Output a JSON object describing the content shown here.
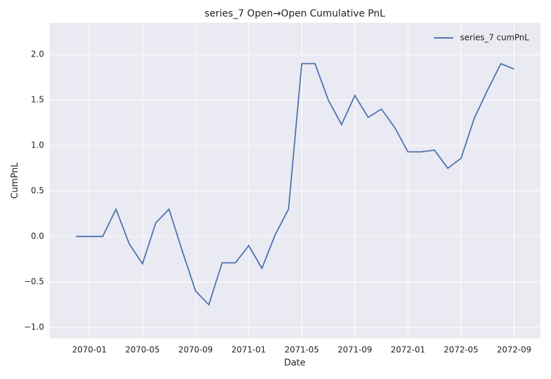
{
  "chart_data": {
    "type": "line",
    "title": "series_7 Open→Open Cumulative PnL",
    "x_label": "Date",
    "y_label": "CumPnL",
    "x": [
      "2069-12",
      "2070-01",
      "2070-02",
      "2070-03",
      "2070-04",
      "2070-05",
      "2070-06",
      "2070-07",
      "2070-08",
      "2070-09",
      "2070-10",
      "2070-11",
      "2070-12",
      "2071-01",
      "2071-02",
      "2071-03",
      "2071-04",
      "2071-05",
      "2071-06",
      "2071-07",
      "2071-08",
      "2071-09",
      "2071-10",
      "2071-11",
      "2071-12",
      "2072-01",
      "2072-02",
      "2072-03",
      "2072-04",
      "2072-05",
      "2072-06",
      "2072-07",
      "2072-08",
      "2072-09"
    ],
    "series": [
      {
        "name": "series_7 cumPnL",
        "color": "#4c72b0",
        "values": [
          0,
          0,
          0,
          0.3,
          -0.08,
          -0.3,
          0.15,
          0.3,
          -0.16,
          -0.6,
          -0.75,
          -0.29,
          -0.29,
          -0.1,
          -0.35,
          0.02,
          0.3,
          1.9,
          1.9,
          1.5,
          1.23,
          1.55,
          1.31,
          1.4,
          1.2,
          0.93,
          0.93,
          0.95,
          0.75,
          0.86,
          1.3,
          1.61,
          1.9,
          1.84
        ]
      }
    ],
    "xlim": [
      "2069-10",
      "2072-11"
    ],
    "xticks": [
      "2070-01",
      "2070-05",
      "2070-09",
      "2071-01",
      "2071-05",
      "2071-09",
      "2072-01",
      "2072-05",
      "2072-09"
    ],
    "ylim": [
      -1.12,
      2.35
    ],
    "yticks": [
      {
        "value": -1.0,
        "label": "−1.0"
      },
      {
        "value": -0.5,
        "label": "−0.5"
      },
      {
        "value": 0.0,
        "label": "0.0"
      },
      0.5,
      {
        "value": 1.0,
        "label": "1.0"
      },
      1.5,
      {
        "value": 2.0,
        "label": "2.0"
      }
    ],
    "grid": true,
    "legend": "upper right"
  }
}
